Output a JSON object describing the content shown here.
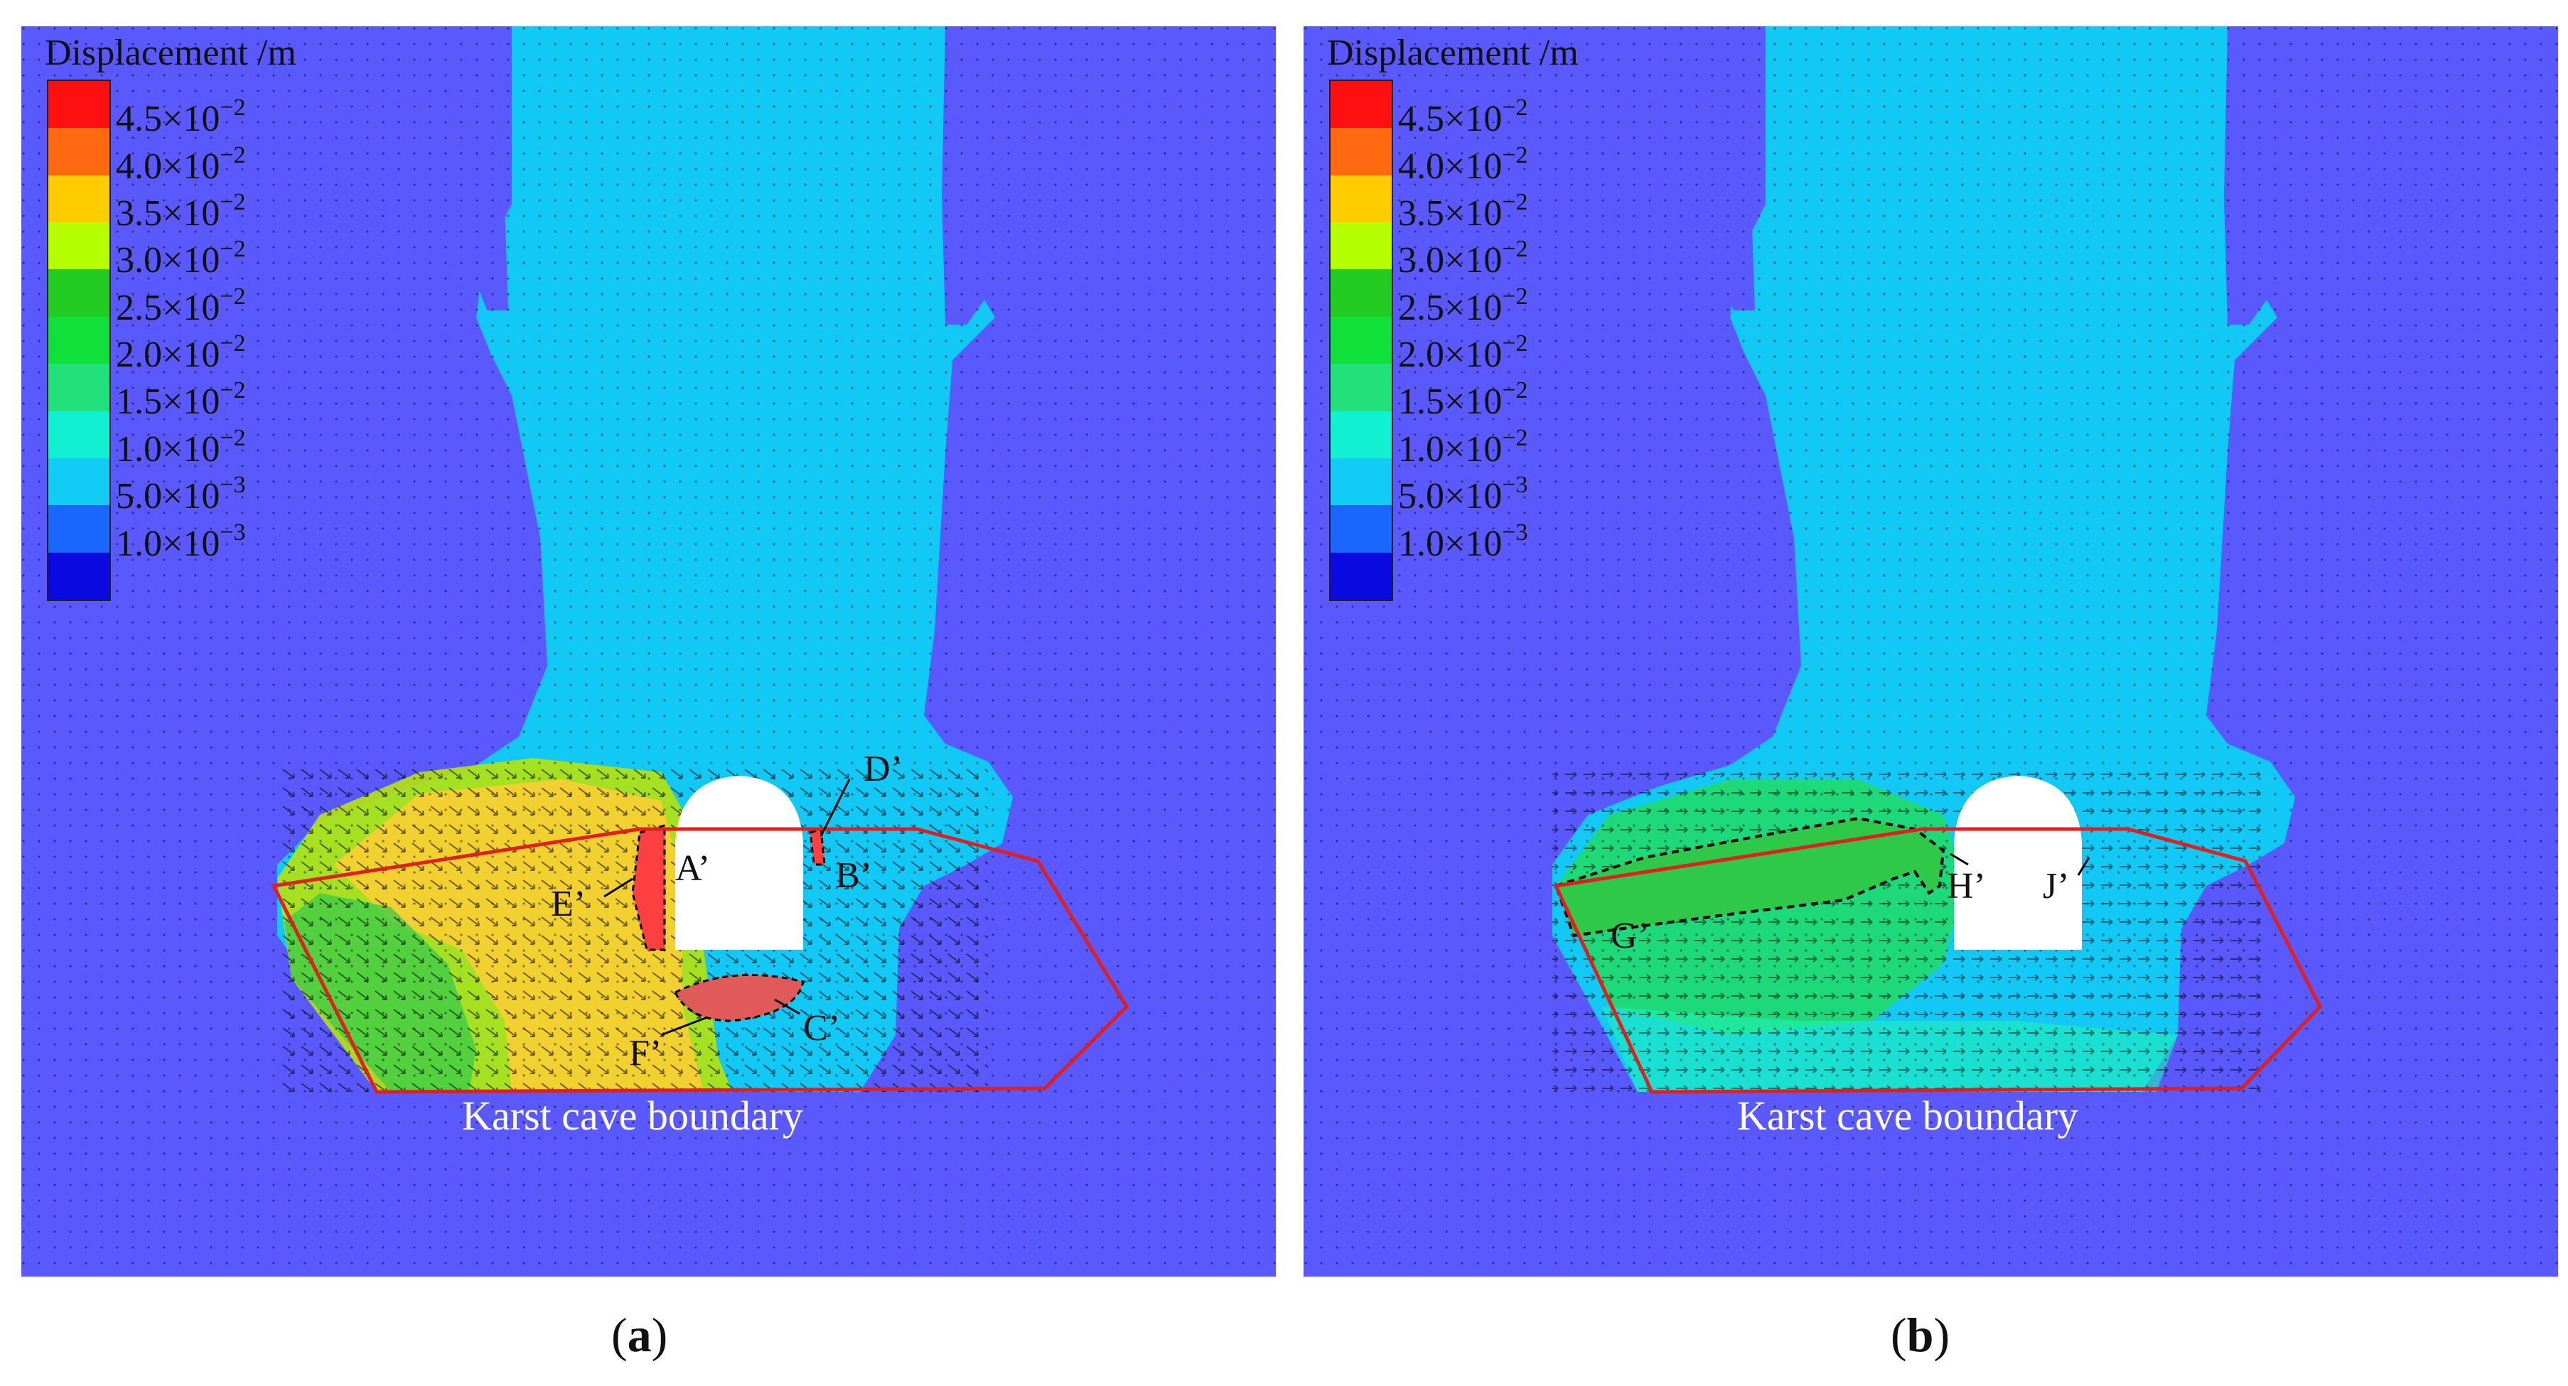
{
  "legend": {
    "title": "Displacement /m",
    "items": [
      {
        "mantissa": "4.5×10",
        "exp": "−2",
        "color": "#ff1010"
      },
      {
        "mantissa": "4.0×10",
        "exp": "−2",
        "color": "#ff6a10"
      },
      {
        "mantissa": "3.5×10",
        "exp": "−2",
        "color": "#ffcc00"
      },
      {
        "mantissa": "3.0×10",
        "exp": "−2",
        "color": "#b6ff00"
      },
      {
        "mantissa": "2.5×10",
        "exp": "−2",
        "color": "#22cc22"
      },
      {
        "mantissa": "2.0×10",
        "exp": "−2",
        "color": "#11e03a"
      },
      {
        "mantissa": "1.5×10",
        "exp": "−2",
        "color": "#22e07a"
      },
      {
        "mantissa": "1.0×10",
        "exp": "−2",
        "color": "#11f0d0"
      },
      {
        "mantissa": "5.0×10",
        "exp": "−3",
        "color": "#12ccf6"
      },
      {
        "mantissa": "1.0×10",
        "exp": "−3",
        "color": "#1a66ff"
      },
      {
        "mantissa": "",
        "exp": "",
        "color": "#0a0ae0"
      }
    ]
  },
  "colors": {
    "background": "#5a59ff",
    "cyan_zone": "#12c8f5",
    "boundary_line": "#e02020",
    "cavity": "#ffffff"
  },
  "panel_a": {
    "labels": {
      "A": "A’",
      "B": "B’",
      "C": "C’",
      "D": "D’",
      "E": "E’",
      "F": "F’"
    },
    "boundary_label": "Karst cave boundary",
    "caption_letter": "a"
  },
  "panel_b": {
    "labels": {
      "G": "G’",
      "H": "H’",
      "J": "J’"
    },
    "boundary_label": "Karst cave boundary",
    "caption_letter": "b"
  }
}
